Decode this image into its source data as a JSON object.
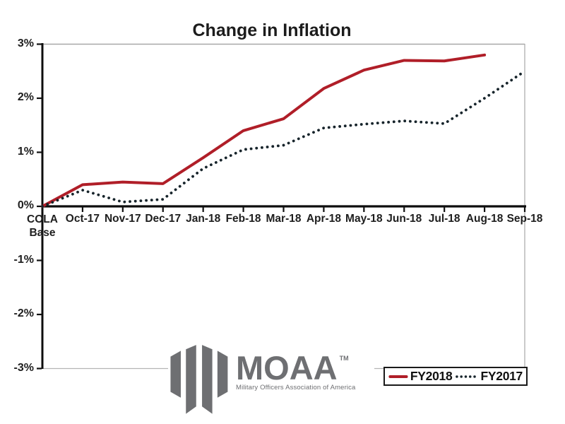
{
  "title": "Change in Inflation",
  "chart_data": {
    "type": "line",
    "title": "Change in Inflation",
    "categories": [
      "COLA Base",
      "Oct-17",
      "Nov-17",
      "Dec-17",
      "Jan-18",
      "Feb-18",
      "Mar-18",
      "Apr-18",
      "May-18",
      "Jun-18",
      "Jul-18",
      "Aug-18",
      "Sep-18"
    ],
    "y_tick_labels": [
      "3%",
      "2%",
      "1%",
      "0%",
      "-1%",
      "-2%",
      "-3%"
    ],
    "y_tick_values": [
      3,
      2,
      1,
      0,
      -1,
      -2,
      -3
    ],
    "ylim": [
      -3,
      3
    ],
    "unit": "%",
    "grid": false,
    "legend_position": "bottom-right",
    "series": [
      {
        "name": "FY2018",
        "line_style": "solid",
        "color": "#b01e28",
        "values": [
          0,
          0.4,
          0.45,
          0.42,
          0.9,
          1.4,
          1.62,
          2.18,
          2.52,
          2.7,
          2.69,
          2.8
        ]
      },
      {
        "name": "FY2017",
        "line_style": "dotted",
        "color": "#17242b",
        "values": [
          0,
          0.3,
          0.08,
          0.13,
          0.7,
          1.05,
          1.13,
          1.45,
          1.52,
          1.58,
          1.53,
          2.0,
          2.5
        ]
      }
    ]
  },
  "legend": {
    "fy2018_label": "FY2018",
    "fy2017_label": "FY2017"
  },
  "logo": {
    "name": "MOAA",
    "trademark": "TM",
    "tagline": "Military Officers Association of America",
    "color": "#6e6f72"
  }
}
